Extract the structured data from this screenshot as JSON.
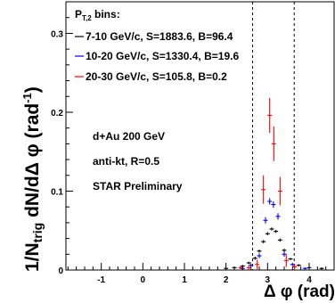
{
  "chart_data": {
    "type": "scatter",
    "title": "",
    "xlabel": "Δ φ (rad)",
    "ylabel": "1/N_trig dN/dΔ φ (rad⁻¹)",
    "ylabel_parts": {
      "main": "1/N",
      "sub": "trig",
      "rest": " dN/dΔ φ (rad",
      "sup": "-1",
      "close": ")"
    },
    "xlim": [
      -1.85,
      4.6
    ],
    "ylim": [
      0,
      0.34
    ],
    "x_ticks": [
      -1,
      0,
      1,
      2,
      3,
      4
    ],
    "y_ticks": [
      0,
      0.1,
      0.2,
      0.3
    ],
    "x_tick_labels": [
      "-1",
      "0",
      "1",
      "2",
      "3",
      "4"
    ],
    "y_tick_labels": [
      "0",
      "0.1",
      "0.2",
      "0.3"
    ],
    "grid": false,
    "legend_placement": "top-left",
    "legend_title": {
      "main": "P",
      "sub": "T,2",
      "rest": " bins:"
    },
    "vertical_lines": [
      2.64,
      3.64
    ],
    "series": [
      {
        "name": "7-10 GeV/c, S=1883.6, B=96.4",
        "color": "#000000",
        "points": [
          {
            "x": 2.0,
            "y": 0.002,
            "err": 0.001
          },
          {
            "x": 2.2,
            "y": 0.003,
            "err": 0.001
          },
          {
            "x": 2.4,
            "y": 0.005,
            "err": 0.001
          },
          {
            "x": 2.55,
            "y": 0.009,
            "err": 0.001
          },
          {
            "x": 2.7,
            "y": 0.015,
            "err": 0.002
          },
          {
            "x": 2.8,
            "y": 0.024,
            "err": 0.002
          },
          {
            "x": 2.9,
            "y": 0.036,
            "err": 0.002
          },
          {
            "x": 3.0,
            "y": 0.046,
            "err": 0.002
          },
          {
            "x": 3.1,
            "y": 0.052,
            "err": 0.002
          },
          {
            "x": 3.2,
            "y": 0.049,
            "err": 0.002
          },
          {
            "x": 3.3,
            "y": 0.038,
            "err": 0.002
          },
          {
            "x": 3.4,
            "y": 0.025,
            "err": 0.002
          },
          {
            "x": 3.55,
            "y": 0.014,
            "err": 0.001
          },
          {
            "x": 3.75,
            "y": 0.006,
            "err": 0.001
          },
          {
            "x": 4.0,
            "y": 0.003,
            "err": 0.001
          },
          {
            "x": 4.3,
            "y": 0.002,
            "err": 0.001
          }
        ]
      },
      {
        "name": "10-20 GeV/c, S=1330.4, B=19.6",
        "color": "#0000ff",
        "points": [
          {
            "x": 2.4,
            "y": 0.002,
            "err": 0.001
          },
          {
            "x": 2.6,
            "y": 0.006,
            "err": 0.002
          },
          {
            "x": 2.8,
            "y": 0.018,
            "err": 0.003
          },
          {
            "x": 2.95,
            "y": 0.063,
            "err": 0.004
          },
          {
            "x": 3.05,
            "y": 0.087,
            "err": 0.004
          },
          {
            "x": 3.14,
            "y": 0.083,
            "err": 0.004
          },
          {
            "x": 3.25,
            "y": 0.068,
            "err": 0.004
          },
          {
            "x": 3.4,
            "y": 0.02,
            "err": 0.003
          },
          {
            "x": 3.6,
            "y": 0.007,
            "err": 0.002
          },
          {
            "x": 3.9,
            "y": 0.002,
            "err": 0.001
          }
        ]
      },
      {
        "name": "20-30 GeV/c, S=105.8, B=0.2",
        "color": "#ff0000",
        "points": [
          {
            "x": 2.35,
            "y": 0.003,
            "err": 0.002
          },
          {
            "x": 2.55,
            "y": 0.003,
            "err": 0.003
          },
          {
            "x": 2.75,
            "y": 0.007,
            "err": 0.006
          },
          {
            "x": 2.9,
            "y": 0.102,
            "err": 0.018
          },
          {
            "x": 3.05,
            "y": 0.196,
            "err": 0.022
          },
          {
            "x": 3.15,
            "y": 0.16,
            "err": 0.022
          },
          {
            "x": 3.3,
            "y": 0.1,
            "err": 0.018
          },
          {
            "x": 3.45,
            "y": 0.012,
            "err": 0.008
          },
          {
            "x": 3.65,
            "y": 0.004,
            "err": 0.004
          }
        ]
      }
    ],
    "annotations": [
      "d+Au 200 GeV",
      "anti-kt, R=0.5",
      "STAR Preliminary"
    ]
  }
}
